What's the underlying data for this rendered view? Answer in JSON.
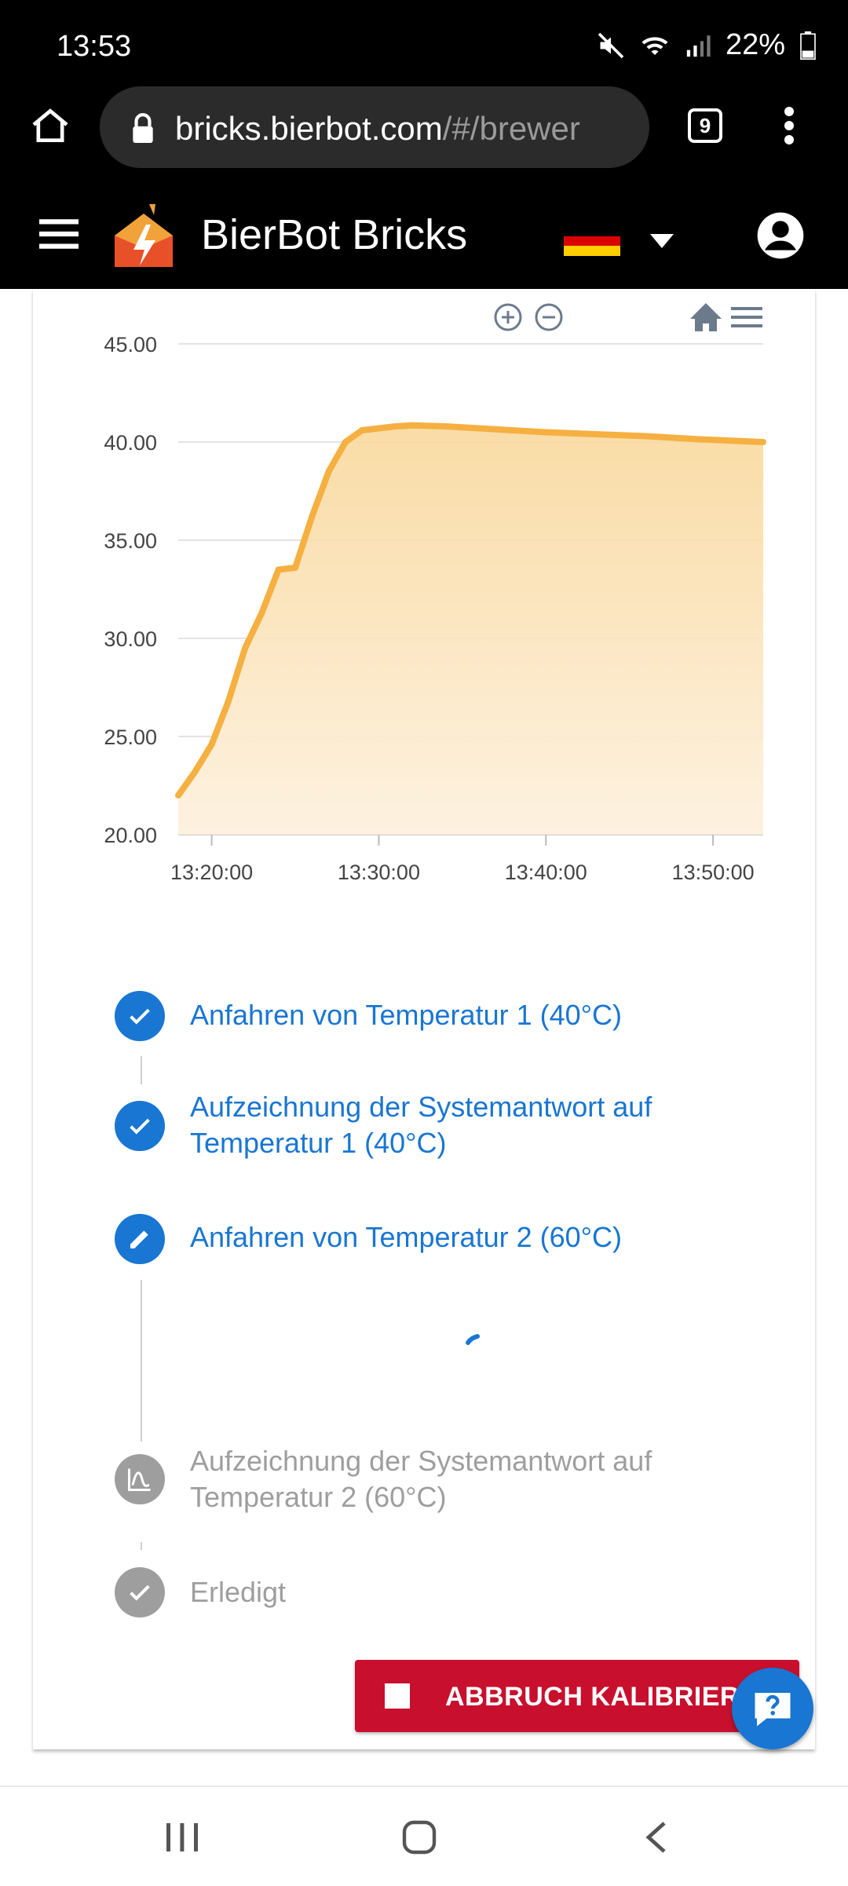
{
  "status_bar": {
    "time": "13:53",
    "battery": "22%"
  },
  "browser": {
    "url_host": "bricks.bierbot.com",
    "url_path": "/#/brewer",
    "tab_count": "9"
  },
  "app": {
    "title": "BierBot Bricks",
    "language": "de"
  },
  "colors": {
    "accent": "#1976d2",
    "series": "#f5b041",
    "danger": "#c8102e",
    "done_step": "#1976d2",
    "pending_step": "#9e9e9e"
  },
  "chart_data": {
    "type": "area",
    "y_ticks": [
      "45.00",
      "40.00",
      "35.00",
      "30.00",
      "25.00",
      "20.00"
    ],
    "x_ticks": [
      "13:20:00",
      "13:30:00",
      "13:40:00",
      "13:50:00"
    ],
    "ylim": [
      20,
      45
    ],
    "xlim": [
      "13:18",
      "13:53"
    ],
    "grid": true,
    "series": [
      {
        "x": [
          "13:18",
          "13:19",
          "13:20",
          "13:21",
          "13:22",
          "13:23",
          "13:24",
          "13:25",
          "13:26",
          "13:27",
          "13:28",
          "13:29",
          "13:30",
          "13:31",
          "13:32",
          "13:34",
          "13:36",
          "13:38",
          "13:40",
          "13:43",
          "13:46",
          "13:49",
          "13:53"
        ],
        "values": [
          22.0,
          23.2,
          24.6,
          26.8,
          29.5,
          31.3,
          33.5,
          33.6,
          36.2,
          38.5,
          40.0,
          40.6,
          40.7,
          40.8,
          40.85,
          40.8,
          40.7,
          40.6,
          40.5,
          40.4,
          40.3,
          40.15,
          40.0
        ]
      }
    ]
  },
  "chart_toolbar": {
    "zoom_in": "zoom-in-icon",
    "zoom_out": "zoom-out-icon",
    "home": "home-icon",
    "menu": "menu-icon"
  },
  "steps": [
    {
      "label": "Anfahren von Temperatur 1 (40°C)",
      "state": "done",
      "icon": "check-icon"
    },
    {
      "label": "Aufzeichnung der Systemantwort auf Temperatur 1 (40°C)",
      "state": "done",
      "icon": "check-icon"
    },
    {
      "label": "Anfahren von Temperatur 2 (60°C)",
      "state": "active",
      "icon": "pencil-icon"
    },
    {
      "label": "Aufzeichnung der Systemantwort auf Temperatur 2 (60°C)",
      "state": "pending",
      "icon": "curve-icon"
    },
    {
      "label": "Erledigt",
      "state": "pending",
      "icon": "check-icon"
    }
  ],
  "abort_button": {
    "label": "ABBRUCH KALIBRIERUNG"
  }
}
